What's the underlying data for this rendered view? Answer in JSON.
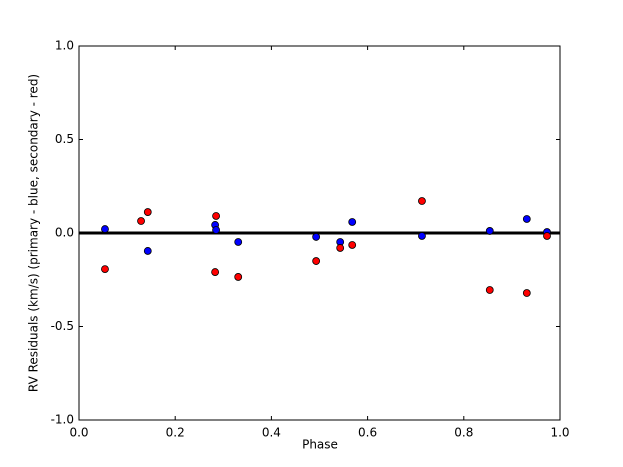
{
  "chart_data": {
    "type": "scatter",
    "xlabel": "Phase",
    "ylabel": "RV Residuals (km/s) (primary - blue, secondary - red)",
    "xlim": [
      0,
      1
    ],
    "ylim": [
      -1,
      1
    ],
    "xticks": [
      {
        "value": 0,
        "label": "0.0"
      },
      {
        "value": 0.2,
        "label": "0.2"
      },
      {
        "value": 0.4,
        "label": "0.4"
      },
      {
        "value": 0.6,
        "label": "0.6"
      },
      {
        "value": 0.8,
        "label": "0.8"
      },
      {
        "value": 1,
        "label": "1.0"
      }
    ],
    "yticks": [
      {
        "value": -1,
        "label": "-1.0"
      },
      {
        "value": -0.5,
        "label": "-0.5"
      },
      {
        "value": 0,
        "label": "0.0"
      },
      {
        "value": 0.5,
        "label": "0.5"
      },
      {
        "value": 1,
        "label": "1.0"
      }
    ],
    "hline": 0,
    "series": [
      {
        "color": "#0000ff",
        "x": [
          0.054,
          0.143,
          0.283,
          0.285,
          0.331,
          0.493,
          0.543,
          0.568,
          0.713,
          0.854,
          0.931,
          0.973
        ],
        "values": [
          0.021,
          -0.096,
          0.043,
          0.016,
          -0.048,
          -0.021,
          -0.048,
          0.059,
          -0.016,
          0.011,
          0.075,
          0.005
        ]
      },
      {
        "color": "#ff0000",
        "x": [
          0.054,
          0.129,
          0.143,
          0.285,
          0.283,
          0.331,
          0.493,
          0.543,
          0.568,
          0.713,
          0.854,
          0.931,
          0.973
        ],
        "values": [
          -0.193,
          0.064,
          0.112,
          0.091,
          -0.209,
          -0.235,
          -0.15,
          -0.08,
          -0.064,
          0.171,
          -0.305,
          -0.321,
          -0.016
        ]
      }
    ]
  }
}
